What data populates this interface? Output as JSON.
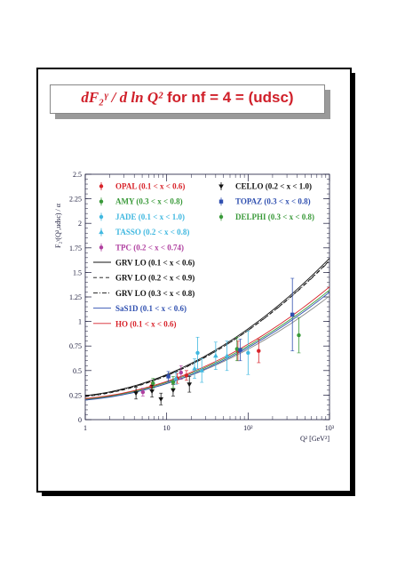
{
  "title": {
    "formula": "dF₂ᵞ / d ln Q²",
    "rest": "for nf = 4 = (udsc)"
  },
  "chart_data": {
    "type": "scatter",
    "title": "dF₂ᵞ / d ln Q² for nf = 4 = (udsc)",
    "xlabel": "Q² [GeV²]",
    "ylabel": "F₂ᵞ(Q²,udsc) / α",
    "x_scale": "log",
    "xlim": [
      1,
      1000
    ],
    "ylim": [
      0,
      2.5
    ],
    "x_ticks": [
      {
        "v": 1,
        "label": "1"
      },
      {
        "v": 10,
        "label": "10"
      },
      {
        "v": 100,
        "label": "10²"
      },
      {
        "v": 1000,
        "label": "10³"
      }
    ],
    "y_ticks": [
      {
        "v": 0,
        "label": "0"
      },
      {
        "v": 0.25,
        "label": "0.25"
      },
      {
        "v": 0.5,
        "label": "0.5"
      },
      {
        "v": 0.75,
        "label": "0.75"
      },
      {
        "v": 1,
        "label": "1"
      },
      {
        "v": 1.25,
        "label": "1.25"
      },
      {
        "v": 1.5,
        "label": "1.5"
      },
      {
        "v": 1.75,
        "label": "1.75"
      },
      {
        "v": 2,
        "label": "2"
      },
      {
        "v": 2.25,
        "label": "2.25"
      },
      {
        "v": 2.5,
        "label": "2.5"
      }
    ],
    "grid": false,
    "legend_position": "top",
    "series": [
      {
        "name": "OPAL (0.1 < x < 0.6)",
        "color": "#d8232a",
        "marker": "circle",
        "points": [
          {
            "x": 6.5,
            "y": 0.34,
            "err": 0.04
          },
          {
            "x": 13.5,
            "y": 0.42,
            "err": 0.05
          },
          {
            "x": 17.5,
            "y": 0.45,
            "err": 0.05
          },
          {
            "x": 75,
            "y": 0.7,
            "err": 0.1
          },
          {
            "x": 135,
            "y": 0.7,
            "err": 0.12
          }
        ]
      },
      {
        "name": "AMY (0.3 < x < 0.8)",
        "color": "#3a9a3a",
        "marker": "circle",
        "points": [
          {
            "x": 6.8,
            "y": 0.37,
            "err": 0.05
          },
          {
            "x": 73,
            "y": 0.72,
            "err": 0.12
          }
        ]
      },
      {
        "name": "JADE (0.1 < x < 1.0)",
        "color": "#40b8e0",
        "marker": "circle",
        "points": [
          {
            "x": 24,
            "y": 0.68,
            "err": 0.16
          },
          {
            "x": 100,
            "y": 0.68,
            "err": 0.22
          }
        ]
      },
      {
        "name": "TASSO (0.2 < x < 0.8)",
        "color": "#40b8e0",
        "marker": "triangle",
        "points": [
          {
            "x": 13,
            "y": 0.42,
            "err": 0.06
          },
          {
            "x": 22,
            "y": 0.52,
            "err": 0.1
          },
          {
            "x": 27,
            "y": 0.5,
            "err": 0.12
          },
          {
            "x": 40,
            "y": 0.65,
            "err": 0.14
          },
          {
            "x": 55,
            "y": 0.65,
            "err": 0.15
          }
        ]
      },
      {
        "name": "TPC (0.2 < x < 0.74)",
        "color": "#b040a0",
        "marker": "circle",
        "points": [
          {
            "x": 5.1,
            "y": 0.28,
            "err": 0.04
          },
          {
            "x": 15,
            "y": 0.48,
            "err": 0.07
          }
        ]
      },
      {
        "name": "CELLO (0.2 < x < 1.0)",
        "color": "#111111",
        "marker": "triangle-down",
        "points": [
          {
            "x": 4.2,
            "y": 0.27,
            "err": 0.06
          },
          {
            "x": 6.6,
            "y": 0.29,
            "err": 0.06
          },
          {
            "x": 8.5,
            "y": 0.21,
            "err": 0.06
          },
          {
            "x": 12,
            "y": 0.3,
            "err": 0.06
          },
          {
            "x": 19,
            "y": 0.36,
            "err": 0.08
          }
        ]
      },
      {
        "name": "TOPAZ (0.3 < x < 0.8)",
        "color": "#3050b0",
        "marker": "square",
        "points": [
          {
            "x": 10.5,
            "y": 0.44,
            "err": 0.05
          },
          {
            "x": 80,
            "y": 0.71,
            "err": 0.11
          },
          {
            "x": 350,
            "y": 1.07,
            "err": 0.37
          }
        ]
      },
      {
        "name": "DELPHI (0.3 < x < 0.8)",
        "color": "#3a9a3a",
        "marker": "circle",
        "points": [
          {
            "x": 12,
            "y": 0.38,
            "err": 0.06
          },
          {
            "x": 420,
            "y": 0.86,
            "err": 0.18
          }
        ]
      }
    ],
    "curves": [
      {
        "name": "GRV LO (0.1 < x < 0.6)",
        "color": "#111111",
        "dash": "solid",
        "a": 0.245,
        "b": 0.252
      },
      {
        "name": "GRV LO (0.2 < x < 0.9)",
        "color": "#111111",
        "dash": "dashed",
        "a": 0.235,
        "b": 0.25
      },
      {
        "name": "GRV LO (0.3 < x < 0.8)",
        "color": "#111111",
        "dash": "dashdot",
        "a": 0.24,
        "b": 0.248
      },
      {
        "name": "SaS1D (0.1 < x < 0.6)",
        "color": "#3050b0",
        "dash": "solid",
        "a": 0.2,
        "b": 0.198
      },
      {
        "name": "HO (0.1 < x < 0.6)",
        "color": "#d8232a",
        "dash": "solid",
        "a": 0.215,
        "b": 0.205
      }
    ],
    "extra_curves": [
      {
        "color": "#888888",
        "dash": "solid",
        "a": 0.205,
        "b": 0.19
      },
      {
        "color": "#3a9a3a",
        "dash": "solid",
        "a": 0.21,
        "b": 0.2
      }
    ],
    "legend_left": [
      "OPAL (0.1 < x < 0.6)",
      "AMY (0.3 < x < 0.8)",
      "JADE (0.1 < x < 1.0)",
      "TASSO (0.2 < x < 0.8)",
      "TPC (0.2 < x < 0.74)",
      "GRV LO (0.1 < x < 0.6)",
      "GRV LO (0.2 < x < 0.9)",
      "GRV LO (0.3 < x < 0.8)",
      "SaS1D (0.1 < x < 0.6)",
      "HO (0.1 < x < 0.6)"
    ],
    "legend_right": [
      "CELLO (0.2 < x < 1.0)",
      "TOPAZ (0.3 < x < 0.8)",
      "DELPHI (0.3 < x < 0.8)"
    ]
  }
}
